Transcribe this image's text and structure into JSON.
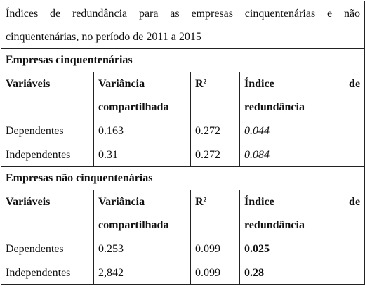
{
  "title": "Índices de redundância para as empresas cinquentenárias e não cinquentenárias, no período de 2011 a 2015",
  "sections": [
    {
      "heading": "Empresas cinquentenárias",
      "columns": [
        "Variáveis",
        "Variância compartilhada",
        "R²",
        "Índice de redundância"
      ],
      "rows": [
        [
          "Dependentes",
          "0.163",
          "0.272",
          "0.044"
        ],
        [
          "Independentes",
          "0.31",
          "0.272",
          "0.084"
        ]
      ]
    },
    {
      "heading": "Empresas não cinquentenárias",
      "columns": [
        "Variáveis",
        "Variância compartilhada",
        "R²",
        "Índice de redundância"
      ],
      "rows": [
        [
          "Dependentes",
          "0.253",
          "0.099",
          "0.025"
        ],
        [
          "Independentes",
          "2,842",
          "0.099",
          "0.28"
        ]
      ]
    }
  ]
}
